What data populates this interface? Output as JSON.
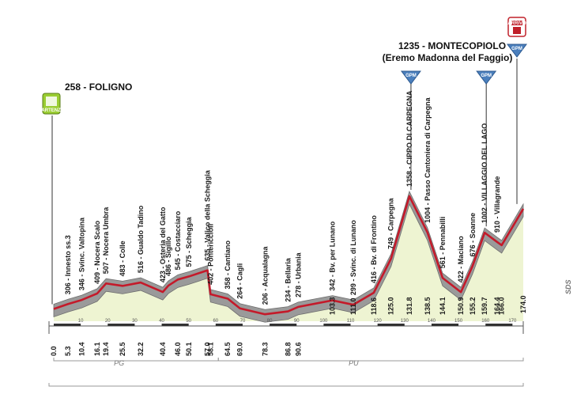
{
  "chart_data": {
    "type": "area",
    "title": "",
    "xlabel": "",
    "ylabel": "",
    "xlim": [
      0,
      174
    ],
    "ylim": [
      200,
      1400
    ],
    "start": {
      "alt": "258",
      "name": "FOLIGNO",
      "badge": "PARTENZA"
    },
    "finish": {
      "alt": "1235",
      "name": "MONTECOPIOLO",
      "subtitle": "(Eremo Madonna del Faggio)",
      "badge": "ARRIVO",
      "gpm": "GPM"
    },
    "gpm_label": "GPM",
    "distance_ticks": [
      10,
      20,
      30,
      40,
      50,
      60,
      70,
      80,
      90,
      100,
      110,
      120,
      130,
      140,
      150,
      160,
      170
    ],
    "provinces": [
      {
        "label": "PG",
        "km_start": 0,
        "km_end": 61
      },
      {
        "label": "PU",
        "km_start": 61,
        "km_end": 174
      }
    ],
    "end_code": "SDS",
    "profile": [
      {
        "km": 0,
        "alt": 258
      },
      {
        "km": 5.3,
        "alt": 306
      },
      {
        "km": 10.4,
        "alt": 346
      },
      {
        "km": 16.1,
        "alt": 409
      },
      {
        "km": 19.4,
        "alt": 507
      },
      {
        "km": 25.5,
        "alt": 483
      },
      {
        "km": 32.2,
        "alt": 516
      },
      {
        "km": 40.4,
        "alt": 423
      },
      {
        "km": 42.5,
        "alt": 486
      },
      {
        "km": 46.0,
        "alt": 545
      },
      {
        "km": 50.1,
        "alt": 575
      },
      {
        "km": 57.0,
        "alt": 635
      },
      {
        "km": 58.1,
        "alt": 402
      },
      {
        "km": 64.5,
        "alt": 358
      },
      {
        "km": 69.0,
        "alt": 264
      },
      {
        "km": 78.3,
        "alt": 206
      },
      {
        "km": 86.8,
        "alt": 234
      },
      {
        "km": 90.6,
        "alt": 278
      },
      {
        "km": 103.3,
        "alt": 342
      },
      {
        "km": 111.0,
        "alt": 299
      },
      {
        "km": 118.6,
        "alt": 416
      },
      {
        "km": 125.0,
        "alt": 749
      },
      {
        "km": 131.8,
        "alt": 1358
      },
      {
        "km": 138.5,
        "alt": 1004
      },
      {
        "km": 144.1,
        "alt": 561
      },
      {
        "km": 150.9,
        "alt": 422
      },
      {
        "km": 155.2,
        "alt": 676
      },
      {
        "km": 159.7,
        "alt": 1002
      },
      {
        "km": 164.4,
        "alt": 910
      },
      {
        "km": 166.0,
        "alt": 880
      },
      {
        "km": 174.0,
        "alt": 1235
      }
    ],
    "waypoints": [
      {
        "km": 5.3,
        "label": "306 - Innesto ss.3",
        "km_label": "5.3"
      },
      {
        "km": 10.4,
        "label": "346 - Svinc. Valtopina",
        "km_label": "10.4"
      },
      {
        "km": 16.1,
        "label": "409 - Nocera Scalo",
        "km_label": "16.1"
      },
      {
        "km": 19.4,
        "label": "507 - Nocera Umbra",
        "km_label": "19.4"
      },
      {
        "km": 25.5,
        "label": "483 - Colle",
        "km_label": "25.5"
      },
      {
        "km": 32.2,
        "label": "516 - Gualdo Tadino",
        "km_label": "32.2"
      },
      {
        "km": 40.4,
        "label": "423 - Osteria del Gatto",
        "km_label": "40.4"
      },
      {
        "km": 42.5,
        "label": "486 - Sigillo",
        "km_label": ""
      },
      {
        "km": 46.0,
        "label": "545 - Costacciaro",
        "km_label": "46.0"
      },
      {
        "km": 50.1,
        "label": "575 - Scheggia",
        "km_label": "50.1"
      },
      {
        "km": 57.0,
        "label": "635 - Valico della Scheggia",
        "km_label": "57.0"
      },
      {
        "km": 58.1,
        "label": "402 - Pontericcioli",
        "km_label": "58.1"
      },
      {
        "km": 64.5,
        "label": "358 - Cantiano",
        "km_label": "64.5"
      },
      {
        "km": 69.0,
        "label": "264 - Cagli",
        "km_label": "69.0"
      },
      {
        "km": 78.3,
        "label": "206 - Acqualagna",
        "km_label": "78.3"
      },
      {
        "km": 86.8,
        "label": "234 - Bellaria",
        "km_label": "86.8"
      },
      {
        "km": 90.6,
        "label": "278 - Urbania",
        "km_label": "90.6"
      },
      {
        "km": 103.3,
        "label": "342 - Bv. per Lunano",
        "km_label": "103.3"
      },
      {
        "km": 111.0,
        "label": "299 - Svinc. di Lunano",
        "km_label": "111.0"
      },
      {
        "km": 118.6,
        "label": "416 - Bv. di Frontino",
        "km_label": "118.6"
      },
      {
        "km": 125.0,
        "label": "749 - Carpegna",
        "km_label": "125.0"
      },
      {
        "km": 131.8,
        "label": "1358 - CIPPO DI CARPEGNA",
        "km_label": "131.8",
        "gpm": true
      },
      {
        "km": 138.5,
        "label": "1004 - Passo Cantoniera di Carpegna",
        "km_label": "138.5"
      },
      {
        "km": 144.1,
        "label": "561 - Pennabilli",
        "km_label": "144.1"
      },
      {
        "km": 150.9,
        "label": "422 - Maciano",
        "km_label": "150.9"
      },
      {
        "km": 155.2,
        "label": "676 - Soanne",
        "km_label": "155.2"
      },
      {
        "km": 159.7,
        "label": "1002 - VILLAGGIO DEL LAGO",
        "km_label": "159.7",
        "gpm": true
      },
      {
        "km": 164.4,
        "label": "910 - Villagrande",
        "km_label": "164.4"
      },
      {
        "km": 166.0,
        "label": "",
        "km_label": "166.0"
      }
    ],
    "start_km_label": "0.0",
    "finish_km_label": "174.0"
  }
}
